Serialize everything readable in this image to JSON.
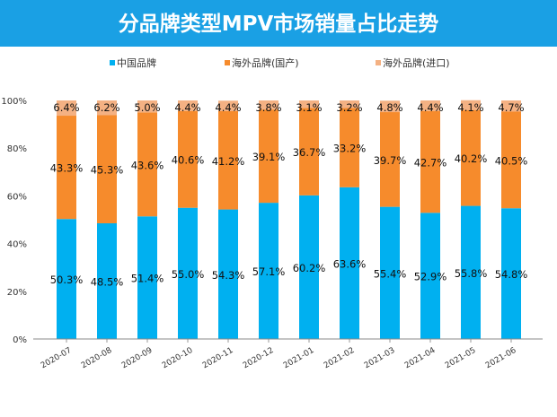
{
  "chart_data": {
    "type": "bar",
    "stacked": true,
    "title": "分品牌类型MPV市场销量占比走势",
    "categories": [
      "2020-07",
      "2020-08",
      "2020-09",
      "2020-10",
      "2020-11",
      "2020-12",
      "2021-01",
      "2021-02",
      "2021-03",
      "2021-04",
      "2021-05",
      "2021-06"
    ],
    "series": [
      {
        "name": "中国品牌",
        "color": "#00b0f0",
        "values": [
          50.3,
          48.5,
          51.4,
          55.0,
          54.3,
          57.1,
          60.2,
          63.6,
          55.4,
          52.9,
          55.8,
          54.8
        ]
      },
      {
        "name": "海外品牌(国产)",
        "color": "#f68b2c",
        "values": [
          43.3,
          45.3,
          43.6,
          40.6,
          41.2,
          39.1,
          36.7,
          33.2,
          39.7,
          42.7,
          40.2,
          40.5
        ]
      },
      {
        "name": "海外品牌(进口)",
        "color": "#f4b183",
        "values": [
          6.4,
          6.2,
          5.0,
          4.4,
          4.4,
          3.8,
          3.1,
          3.2,
          4.8,
          4.4,
          4.1,
          4.7
        ]
      }
    ],
    "yticks": [
      "0%",
      "20%",
      "40%",
      "60%",
      "80%",
      "100%"
    ],
    "ylim": [
      0,
      100
    ],
    "legend": "top",
    "grid": false
  }
}
